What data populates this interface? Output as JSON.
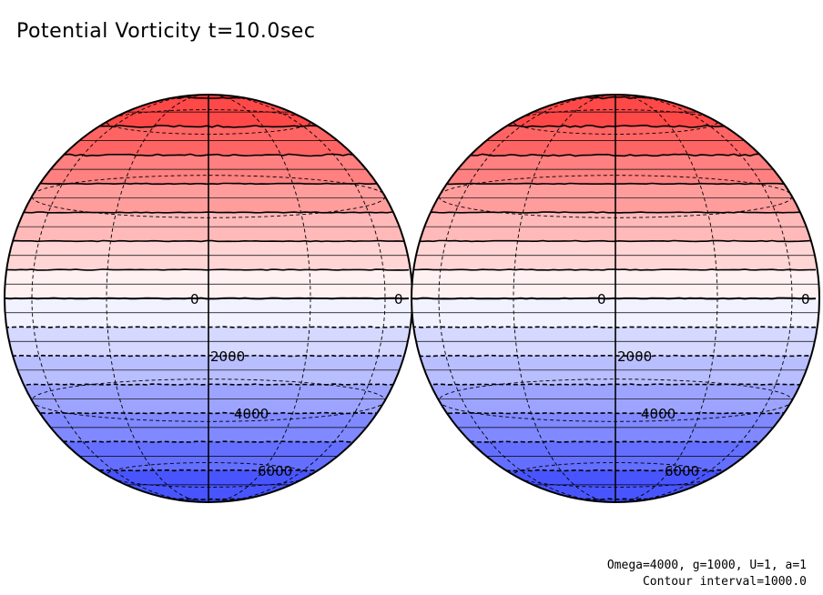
{
  "figure": {
    "title": "Potential Vorticity t=10.0sec",
    "params_note": "Omega=4000, g=1000, U=1, a=1",
    "interval_note": "Contour interval=1000.0"
  },
  "colors": {
    "north_max": "#ff3a3a",
    "zero": "#ffffff",
    "south_max": "#3a48ff",
    "line": "#000000"
  },
  "chart_data": {
    "type": "contour",
    "projection": "orthographic",
    "hemispheres": [
      "left",
      "right"
    ],
    "contour_interval": 1000.0,
    "levels": [
      -7000,
      -6000,
      -5000,
      -4000,
      -3000,
      -2000,
      -1000,
      0,
      1000,
      2000,
      3000,
      4000,
      5000,
      6000,
      7000
    ],
    "labels": [
      {
        "text": "0",
        "value": 0
      },
      {
        "text": "2000",
        "value": 2000
      },
      {
        "text": "4000",
        "value": 4000
      },
      {
        "text": "6000",
        "value": 6000
      }
    ]
  }
}
